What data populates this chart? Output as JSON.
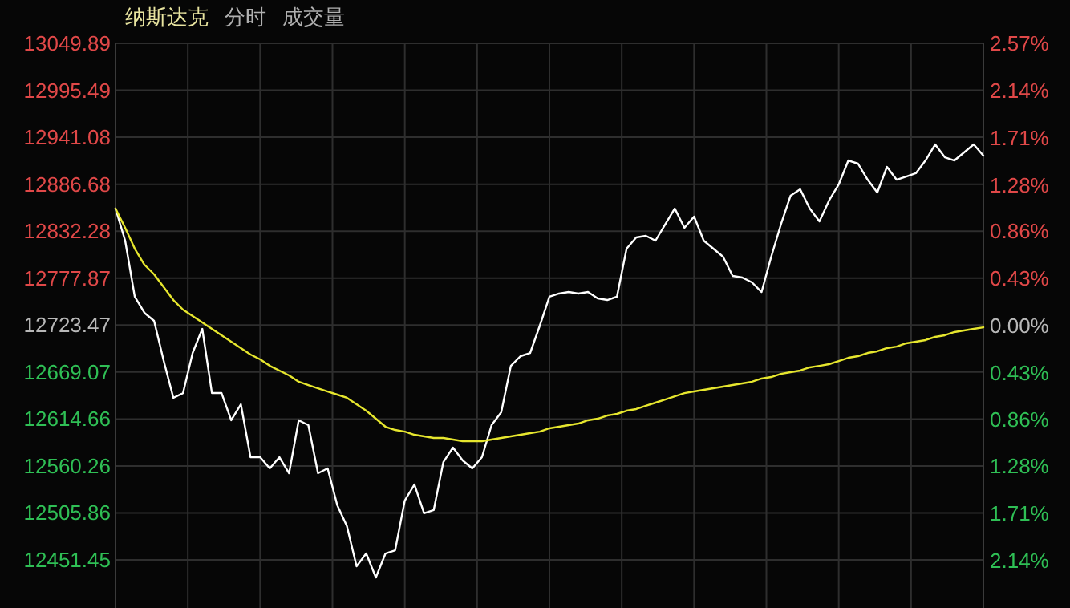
{
  "chart_data": {
    "type": "line",
    "title": "纳斯达克",
    "annotations": [
      "分时",
      "成交量"
    ],
    "categories": [
      null,
      null,
      null,
      null,
      null,
      null,
      null,
      null,
      null,
      null,
      null,
      null,
      null,
      null,
      null,
      null,
      null,
      null,
      null,
      null,
      null,
      null,
      null,
      null,
      null,
      null,
      null,
      null,
      null,
      null,
      null,
      null,
      null,
      null,
      null,
      null,
      null,
      null,
      null,
      null,
      null,
      null,
      null,
      null,
      null,
      null,
      null,
      null,
      null,
      null,
      null,
      null,
      null,
      null,
      null,
      null,
      null,
      null,
      null,
      null,
      null,
      null,
      null,
      null,
      null,
      null,
      null,
      null,
      null,
      null,
      null,
      null,
      null,
      null,
      null,
      null,
      null,
      null,
      null,
      null,
      null,
      null,
      null,
      null,
      null,
      null,
      null,
      null,
      null,
      null,
      null
    ],
    "series": [
      {
        "color": "#ffffff",
        "values": [
          12858.5,
          12821.3,
          12756.3,
          12737.7,
          12728.4,
          12681.9,
          12639.2,
          12644.7,
          12691.2,
          12719.1,
          12644.7,
          12644.7,
          12613.2,
          12631.7,
          12570.4,
          12570.4,
          12557.4,
          12570.4,
          12551.8,
          12613.2,
          12607.6,
          12551.8,
          12557.4,
          12514.7,
          12490.5,
          12444.0,
          12458.9,
          12431.0,
          12458.9,
          12462.6,
          12520.2,
          12538.8,
          12505.4,
          12509.1,
          12564.8,
          12581.6,
          12566.7,
          12557.4,
          12570.4,
          12607.6,
          12622.4,
          12676.3,
          12687.5,
          12691.2,
          12722.8,
          12756.3,
          12760.0,
          12761.8,
          12760.0,
          12761.8,
          12754.4,
          12752.5,
          12756.3,
          12812.0,
          12825.0,
          12826.9,
          12821.3,
          12839.9,
          12858.5,
          12836.2,
          12849.2,
          12821.3,
          12812.0,
          12802.7,
          12780.4,
          12778.6,
          12773.0,
          12761.8,
          12802.7,
          12839.9,
          12873.3,
          12880.8,
          12858.5,
          12843.6,
          12867.8,
          12886.4,
          12914.2,
          12910.5,
          12891.9,
          12877.1,
          12906.8,
          12891.9,
          12895.6,
          12899.4,
          12914.2,
          12932.8,
          12917.9,
          12914.2,
          12923.5,
          12932.8,
          12919.8
        ]
      },
      {
        "color": "#e6e62e",
        "values": [
          12858.5,
          12836.2,
          12812.0,
          12793.4,
          12782.3,
          12767.4,
          12752.5,
          12741.4,
          12734.0,
          12726.5,
          12719.1,
          12711.7,
          12704.2,
          12696.8,
          12689.4,
          12683.8,
          12676.3,
          12670.8,
          12665.2,
          12657.8,
          12654.0,
          12650.3,
          12646.6,
          12642.9,
          12639.2,
          12631.7,
          12624.3,
          12615.0,
          12605.7,
          12602.0,
          12600.1,
          12596.4,
          12594.6,
          12592.7,
          12592.7,
          12590.9,
          12589.0,
          12589.0,
          12589.0,
          12590.9,
          12592.7,
          12594.6,
          12596.4,
          12598.3,
          12600.1,
          12603.9,
          12605.7,
          12607.6,
          12609.4,
          12613.2,
          12615.0,
          12618.7,
          12620.6,
          12624.3,
          12626.2,
          12629.9,
          12633.6,
          12637.3,
          12641.0,
          12644.7,
          12646.6,
          12648.5,
          12650.3,
          12652.2,
          12654.0,
          12655.9,
          12657.8,
          12661.5,
          12663.3,
          12667.0,
          12668.9,
          12670.8,
          12674.5,
          12676.3,
          12678.2,
          12681.9,
          12685.6,
          12687.5,
          12691.2,
          12693.1,
          12696.8,
          12698.6,
          12702.4,
          12704.2,
          12706.1,
          12709.8,
          12711.7,
          12715.4,
          12717.2,
          12719.1,
          12720.9
        ]
      }
    ],
    "ylim": [
      12400,
      13049.89
    ],
    "yticks": [
      13049.89,
      12995.49,
      12941.08,
      12886.68,
      12832.28,
      12777.87,
      12723.47,
      12669.07,
      12614.66,
      12560.26,
      12505.86,
      12451.45
    ],
    "y2lim": [
      -2.54,
      2.57
    ],
    "y2ticks": [
      {
        "value": 2.57,
        "label": "2.57%"
      },
      {
        "value": 2.14,
        "label": "2.14%"
      },
      {
        "value": 1.71,
        "label": "1.71%"
      },
      {
        "value": 1.28,
        "label": "1.28%"
      },
      {
        "value": 0.86,
        "label": "0.86%"
      },
      {
        "value": 0.43,
        "label": "0.43%"
      },
      {
        "value": 0,
        "label": "0.00%"
      },
      {
        "value": -0.43,
        "label": "0.43%"
      },
      {
        "value": -0.86,
        "label": "0.86%"
      },
      {
        "value": -1.28,
        "label": "1.28%"
      },
      {
        "value": -1.71,
        "label": "1.71%"
      },
      {
        "value": -2.14,
        "label": "2.14%"
      }
    ],
    "grid": true
  }
}
